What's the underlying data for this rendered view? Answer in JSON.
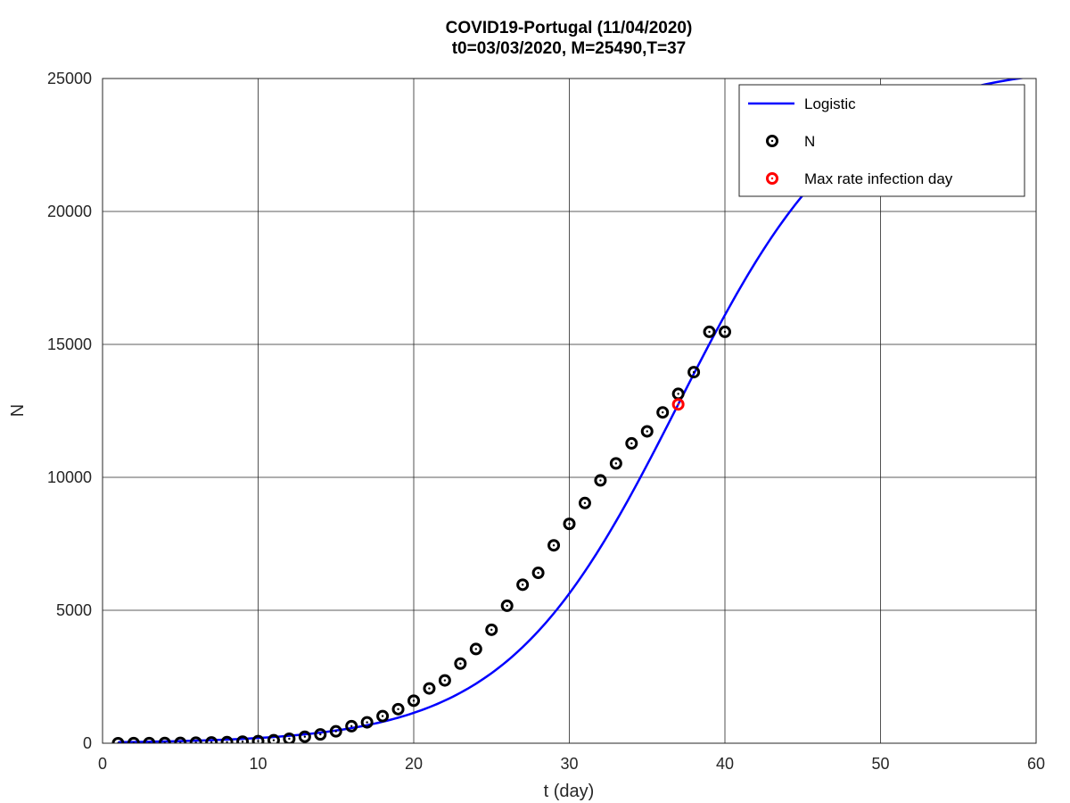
{
  "chart_data": {
    "type": "line",
    "title": "COVID19-Portugal (11/04/2020)",
    "subtitle": "t0=03/03/2020, M=25490,T=37",
    "xlabel": "t (day)",
    "ylabel": "N",
    "xlim": [
      0,
      60
    ],
    "ylim": [
      0,
      25000
    ],
    "xticks": [
      0,
      10,
      20,
      30,
      40,
      50,
      60
    ],
    "yticks": [
      0,
      5000,
      10000,
      15000,
      20000,
      25000
    ],
    "grid": true,
    "legend_position": "top-right",
    "series": [
      {
        "name": "Logistic",
        "kind": "line",
        "color": "#0000ff",
        "model": {
          "M": 25490,
          "T": 37,
          "k": 0.18,
          "x_range": [
            1,
            60
          ]
        }
      },
      {
        "name": "N",
        "kind": "marker",
        "color": "#000000",
        "x": [
          1,
          2,
          3,
          4,
          5,
          6,
          7,
          8,
          9,
          10,
          11,
          12,
          13,
          14,
          15,
          16,
          17,
          18,
          19,
          20,
          21,
          22,
          23,
          24,
          25,
          26,
          27,
          28,
          29,
          30,
          31,
          32,
          33,
          34,
          35,
          36,
          37,
          38,
          39,
          40
        ],
        "y": [
          2,
          4,
          6,
          9,
          13,
          21,
          30,
          41,
          59,
          78,
          112,
          169,
          245,
          331,
          448,
          642,
          785,
          1020,
          1280,
          1600,
          2060,
          2362,
          2995,
          3544,
          4268,
          5170,
          5962,
          6408,
          7443,
          8251,
          9034,
          9886,
          10524,
          11278,
          11730,
          12442,
          13141,
          13956,
          15472,
          15472
        ]
      },
      {
        "name": "Max rate infection day",
        "kind": "marker",
        "color": "#ff0000",
        "x": [
          37
        ],
        "y": [
          12745
        ]
      }
    ]
  }
}
